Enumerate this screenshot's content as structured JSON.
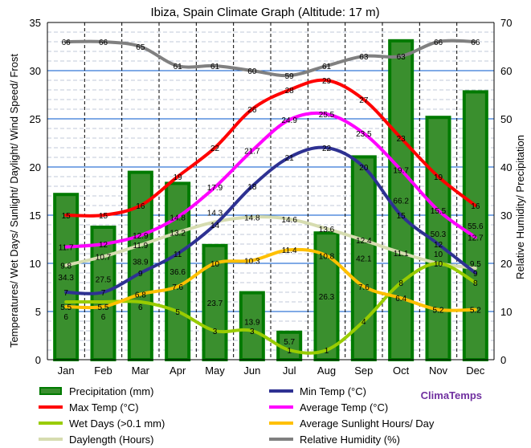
{
  "chart_data": {
    "type": "bar+line",
    "title": "Ibiza, Spain Climate Graph (Altitude: 17 m)",
    "ylabel_left": "Temperatures/ Wet Days/ Sunlight/ Daylight/ Wind Speed/ Frost",
    "ylabel_right": "Relative Humidity/ Precipitation",
    "ylim_left": [
      0,
      35
    ],
    "ylim_right": [
      0,
      70
    ],
    "yticks_left": [
      "0",
      "5",
      "10",
      "15",
      "20",
      "25",
      "30",
      "35"
    ],
    "yticks_right": [
      "0",
      "10",
      "20",
      "30",
      "40",
      "50",
      "60",
      "70"
    ],
    "grid": true,
    "legend_position": "bottom",
    "watermark": "ClimaTemps",
    "categories": [
      "Jan",
      "Feb",
      "Mar",
      "Apr",
      "May",
      "Jun",
      "Jul",
      "Aug",
      "Sep",
      "Oct",
      "Nov",
      "Dec"
    ],
    "series": [
      {
        "name": "Precipitation (mm)",
        "type": "bar",
        "axis": "right",
        "color": "#3a8f2e",
        "values": [
          34.3,
          27.5,
          38.9,
          36.6,
          23.7,
          13.9,
          5.7,
          26.3,
          42.1,
          66.2,
          50.3,
          55.6
        ]
      },
      {
        "name": "Min Temp (°C)",
        "type": "line",
        "axis": "left",
        "color": "#2e3192",
        "values": [
          7,
          7,
          9,
          11,
          14,
          18,
          21,
          22,
          20,
          15,
          12,
          9
        ]
      },
      {
        "name": "Max Temp (°C)",
        "type": "line",
        "axis": "left",
        "color": "#ff0000",
        "values": [
          15,
          15,
          16,
          19,
          22,
          26,
          28,
          29,
          27,
          23,
          19,
          16
        ]
      },
      {
        "name": "Average Temp (°C)",
        "type": "line",
        "axis": "left",
        "color": "#ff00ff",
        "values": [
          11.7,
          12,
          12.9,
          14.8,
          17.9,
          21.7,
          24.9,
          25.5,
          23.5,
          19.7,
          15.5,
          12.7
        ]
      },
      {
        "name": "Wet Days (>0.1 mm)",
        "type": "line",
        "axis": "left",
        "color": "#99cc00",
        "values": [
          6,
          6,
          6,
          5,
          3,
          3,
          1,
          1,
          4,
          8,
          10,
          8
        ]
      },
      {
        "name": "Average Sunlight Hours/ Day",
        "type": "line",
        "axis": "left",
        "color": "#ffc000",
        "values": [
          5.5,
          5.5,
          6.8,
          7.6,
          10.0,
          10.3,
          11.4,
          10.8,
          7.6,
          6.4,
          5.2,
          5.2
        ]
      },
      {
        "name": "Daylength (Hours)",
        "type": "line",
        "axis": "left",
        "color": "#d6dcb0",
        "values": [
          9.8,
          10.7,
          11.9,
          13.2,
          14.3,
          14.8,
          14.6,
          13.6,
          12.4,
          11.1,
          10,
          9.5
        ]
      },
      {
        "name": "Relative Humidity (%)",
        "type": "line",
        "axis": "right",
        "color": "#808080",
        "values": [
          66,
          66,
          65,
          61,
          61,
          60,
          59,
          61,
          63,
          63,
          66,
          66
        ]
      }
    ]
  }
}
